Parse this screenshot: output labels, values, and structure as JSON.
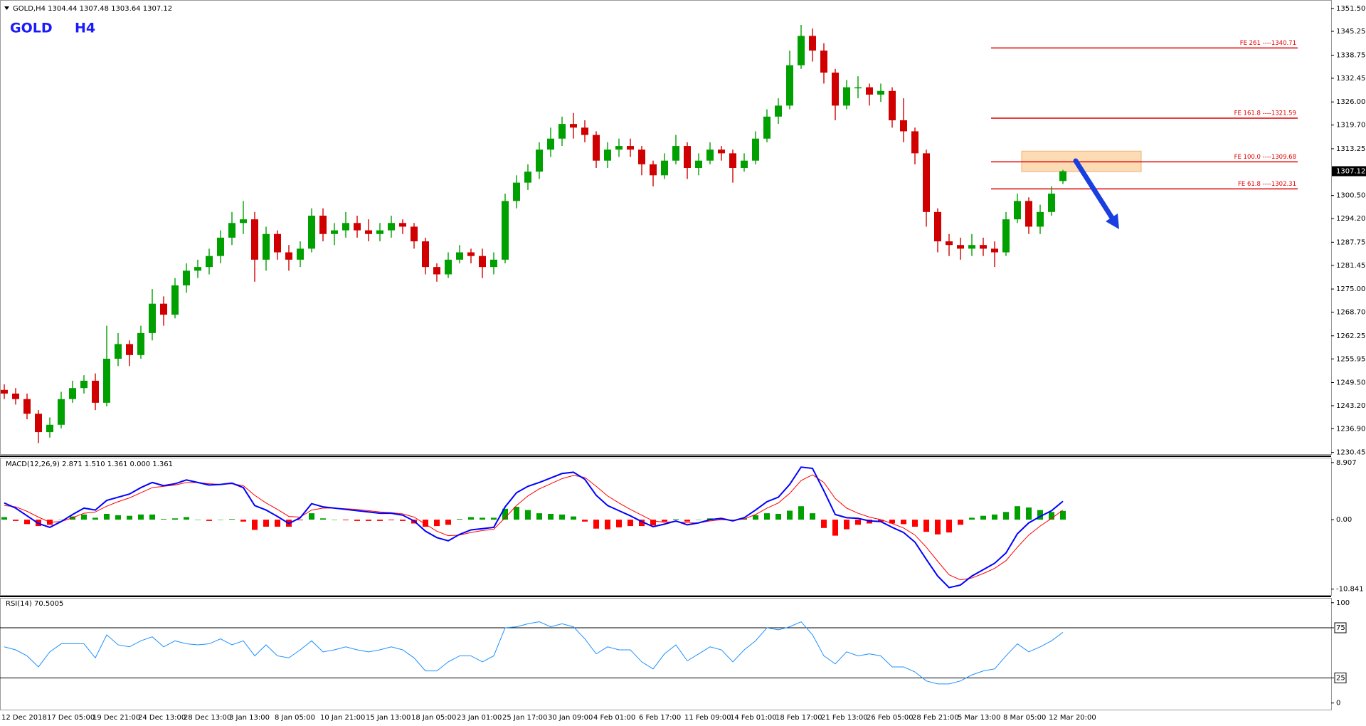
{
  "chart_data": [
    {
      "type": "candlestick",
      "title": "GOLD,H4  1304.44 1307.48 1303.64 1307.12",
      "symbol": "GOLD",
      "timeframe": "H4",
      "categories": [
        "12 Dec 2018",
        null,
        null,
        null,
        "17 Dec 05:00",
        null,
        null,
        null,
        "19 Dec 21:00",
        null,
        null,
        null,
        "24 Dec 13:00",
        null,
        null,
        null,
        "28 Dec 13:00",
        null,
        null,
        null,
        "3 Jan 13:00",
        null,
        null,
        null,
        "8 Jan 05:00",
        null,
        null,
        null,
        "10 Jan 21:00",
        null,
        null,
        null,
        "15 Jan 13:00",
        null,
        null,
        null,
        "18 Jan 05:00",
        null,
        null,
        null,
        "23 Jan 01:00",
        null,
        null,
        null,
        "25 Jan 17:00",
        null,
        null,
        null,
        "30 Jan 09:00",
        null,
        null,
        null,
        "4 Feb 01:00",
        null,
        null,
        null,
        "6 Feb 17:00",
        null,
        null,
        null,
        "11 Feb 09:00",
        null,
        null,
        null,
        "14 Feb 01:00",
        null,
        null,
        null,
        "18 Feb 17:00",
        null,
        null,
        null,
        "21 Feb 13:00",
        null,
        null,
        null,
        "26 Feb 05:00",
        null,
        null,
        null,
        "28 Feb 21:00",
        null,
        null,
        null,
        "5 Mar 13:00",
        null,
        null,
        null,
        "8 Mar 05:00",
        null,
        null,
        null,
        "12 Mar 20:00",
        null
      ],
      "ohlc": [
        [
          1247.5,
          1249,
          1245,
          1246.5
        ],
        [
          1246.5,
          1248,
          1243.5,
          1245
        ],
        [
          1245,
          1246.5,
          1239.5,
          1241
        ],
        [
          1241,
          1242,
          1233,
          1236
        ],
        [
          1236,
          1240,
          1234.5,
          1238
        ],
        [
          1238,
          1247,
          1237,
          1245
        ],
        [
          1245,
          1250,
          1244,
          1248
        ],
        [
          1248,
          1251.5,
          1246.5,
          1250
        ],
        [
          1250,
          1252,
          1242,
          1244
        ],
        [
          1244,
          1265,
          1243,
          1256
        ],
        [
          1256,
          1263,
          1254,
          1260
        ],
        [
          1260,
          1261,
          1254,
          1257
        ],
        [
          1257,
          1265,
          1256,
          1263
        ],
        [
          1263,
          1275,
          1261,
          1271
        ],
        [
          1271,
          1273,
          1265,
          1268
        ],
        [
          1268,
          1278,
          1267,
          1276
        ],
        [
          1276,
          1282,
          1274,
          1280
        ],
        [
          1280,
          1283,
          1278,
          1281
        ],
        [
          1281,
          1286,
          1279,
          1284
        ],
        [
          1284,
          1291,
          1282,
          1289
        ],
        [
          1289,
          1296,
          1287,
          1293
        ],
        [
          1293,
          1299,
          1290,
          1294
        ],
        [
          1294,
          1296,
          1277,
          1283
        ],
        [
          1283,
          1292,
          1280,
          1290
        ],
        [
          1290,
          1291,
          1283,
          1285
        ],
        [
          1285,
          1287,
          1280,
          1283
        ],
        [
          1283,
          1288,
          1281,
          1286
        ],
        [
          1286,
          1297,
          1285,
          1295
        ],
        [
          1295,
          1297,
          1288,
          1290
        ],
        [
          1290,
          1293,
          1287,
          1291
        ],
        [
          1291,
          1296,
          1289,
          1293
        ],
        [
          1293,
          1295,
          1289,
          1291
        ],
        [
          1291,
          1294,
          1288,
          1290
        ],
        [
          1290,
          1293,
          1288,
          1291
        ],
        [
          1291,
          1295,
          1289,
          1293
        ],
        [
          1293,
          1294,
          1290,
          1292
        ],
        [
          1292,
          1293,
          1286,
          1288
        ],
        [
          1288,
          1289,
          1279,
          1281
        ],
        [
          1281,
          1282,
          1277,
          1279
        ],
        [
          1279,
          1285,
          1278,
          1283
        ],
        [
          1283,
          1287,
          1282,
          1285
        ],
        [
          1285,
          1286,
          1282,
          1284
        ],
        [
          1284,
          1286,
          1278,
          1281
        ],
        [
          1281,
          1285,
          1279,
          1283
        ],
        [
          1283,
          1301,
          1282,
          1299
        ],
        [
          1299,
          1306,
          1297,
          1304
        ],
        [
          1304,
          1309,
          1302,
          1307
        ],
        [
          1307,
          1315,
          1305,
          1313
        ],
        [
          1313,
          1319,
          1311,
          1316
        ],
        [
          1316,
          1322,
          1314,
          1320
        ],
        [
          1320,
          1323,
          1316,
          1319
        ],
        [
          1319,
          1321,
          1315,
          1317
        ],
        [
          1317,
          1318,
          1308,
          1310
        ],
        [
          1310,
          1315,
          1308,
          1313
        ],
        [
          1313,
          1316,
          1311,
          1314
        ],
        [
          1314,
          1316,
          1311,
          1313
        ],
        [
          1313,
          1314,
          1306,
          1309
        ],
        [
          1309,
          1310,
          1303,
          1306
        ],
        [
          1306,
          1312,
          1305,
          1310
        ],
        [
          1310,
          1317,
          1309,
          1314
        ],
        [
          1314,
          1315,
          1305,
          1308
        ],
        [
          1308,
          1312,
          1306,
          1310
        ],
        [
          1310,
          1315,
          1309,
          1313
        ],
        [
          1313,
          1314,
          1310,
          1312
        ],
        [
          1312,
          1313,
          1304,
          1308
        ],
        [
          1308,
          1312,
          1307,
          1310
        ],
        [
          1310,
          1318,
          1309,
          1316
        ],
        [
          1316,
          1324,
          1315,
          1322
        ],
        [
          1322,
          1327,
          1320,
          1325
        ],
        [
          1325,
          1340,
          1324,
          1336
        ],
        [
          1336,
          1347,
          1335,
          1344
        ],
        [
          1344,
          1346,
          1337,
          1340
        ],
        [
          1340,
          1342,
          1331,
          1334
        ],
        [
          1334,
          1335,
          1321,
          1325
        ],
        [
          1325,
          1332,
          1324,
          1330
        ],
        [
          1330,
          1333,
          1327,
          1330
        ],
        [
          1330,
          1331,
          1325,
          1328
        ],
        [
          1328,
          1331,
          1326,
          1329
        ],
        [
          1329,
          1330,
          1319,
          1321
        ],
        [
          1321,
          1327,
          1315,
          1318
        ],
        [
          1318,
          1319,
          1309,
          1312
        ],
        [
          1312,
          1313,
          1292,
          1296
        ],
        [
          1296,
          1297,
          1285,
          1288
        ],
        [
          1288,
          1290,
          1284,
          1287
        ],
        [
          1287,
          1289,
          1283,
          1286
        ],
        [
          1286,
          1290,
          1284,
          1287
        ],
        [
          1287,
          1289,
          1284,
          1286
        ],
        [
          1286,
          1288,
          1281,
          1285
        ],
        [
          1285,
          1296,
          1284,
          1294
        ],
        [
          1294,
          1301,
          1293,
          1299
        ],
        [
          1299,
          1300,
          1290,
          1292
        ],
        [
          1292,
          1298,
          1290,
          1296
        ],
        [
          1296,
          1303,
          1295,
          1301
        ],
        [
          1304.44,
          1307.48,
          1303.64,
          1307.12
        ]
      ],
      "up_color": "#00a000",
      "down_color": "#d00000",
      "ylim": [
        1230.0,
        1353.4
      ],
      "yticks": [
        {
          "value": 1351.5,
          "label": "1351.50"
        },
        1345.25,
        1338.75,
        1332.45,
        {
          "value": 1326,
          "label": "1326.00"
        },
        {
          "value": 1319.7,
          "label": "1319.70"
        },
        1313.25,
        {
          "value": 1300.5,
          "label": "1300.50"
        },
        {
          "value": 1294.2,
          "label": "1294.20"
        },
        1287.75,
        1281.45,
        {
          "value": 1275,
          "label": "1275.00"
        },
        {
          "value": 1268.7,
          "label": "1268.70"
        },
        1262.25,
        1255.95,
        {
          "value": 1249.5,
          "label": "1249.50"
        },
        {
          "value": 1243.2,
          "label": "1243.20"
        },
        {
          "value": 1236.9,
          "label": "1236.90"
        },
        1230.45
      ],
      "levels": [
        {
          "label": "FE 261 ----1340.71",
          "value": 1340.71
        },
        {
          "label": "FE 161.8 ----1321.59",
          "value": 1321.59
        },
        {
          "label": "FE 100.0 ----1309.68",
          "value": 1309.68
        },
        {
          "label": "FE 61.8 ----1302.31",
          "value": 1302.31
        }
      ],
      "level_color": "#e00000",
      "zone": [
        1307.0,
        1312.6
      ],
      "zone_color": "#fcd5a8"
    },
    {
      "type": "macd",
      "title": "MACD(12,26,9) 2.871 1.510 1.361 0.000 1.361",
      "ylim": [
        -11.65,
        9.45
      ],
      "yticks": [
        8.907,
        {
          "value": 0,
          "label": "0.00"
        },
        -10.841
      ],
      "series": [
        {
          "kind": "histogram",
          "color": "#00a000",
          "negative_color": "#ff0000",
          "values": [
            0.4,
            -0.2,
            -0.7,
            -1.0,
            -0.8,
            0.0,
            0.5,
            0.8,
            0.3,
            0.9,
            0.7,
            0.6,
            0.8,
            0.8,
            0.1,
            0.2,
            0.4,
            0.0,
            -0.2,
            0.0,
            0.1,
            -0.3,
            -1.6,
            -1.1,
            -1.1,
            -1.1,
            -0.1,
            1.0,
            0.2,
            0.0,
            -0.1,
            -0.2,
            -0.2,
            -0.2,
            -0.1,
            -0.2,
            -0.6,
            -1.1,
            -1.0,
            -0.8,
            0.1,
            0.4,
            0.3,
            0.3,
            1.7,
            2.0,
            1.5,
            1.0,
            0.9,
            0.8,
            0.5,
            -0.3,
            -1.4,
            -1.5,
            -1.2,
            -1.0,
            -1.0,
            -0.9,
            -0.3,
            0.1,
            -0.3,
            0.0,
            0.2,
            0.2,
            -0.1,
            0.2,
            0.7,
            1.0,
            0.9,
            1.4,
            2.1,
            1.0,
            -1.3,
            -2.5,
            -1.5,
            -0.8,
            -0.6,
            -0.3,
            -0.6,
            -0.7,
            -1.1,
            -1.9,
            -2.3,
            -2.0,
            -0.8,
            0.3,
            0.6,
            0.8,
            1.2,
            2.1,
            1.9,
            1.5,
            1.2,
            1.361
          ]
        },
        {
          "kind": "line",
          "color": "#ff0000",
          "width": 1,
          "values": [
            2.2,
            2.0,
            1.3,
            0.4,
            -0.4,
            -0.3,
            0.3,
            1.0,
            1.2,
            2.1,
            2.8,
            3.4,
            4.2,
            5.0,
            5.2,
            5.4,
            5.8,
            5.8,
            5.6,
            5.5,
            5.6,
            5.3,
            3.8,
            2.6,
            1.6,
            0.5,
            0.4,
            1.5,
            1.8,
            1.8,
            1.7,
            1.6,
            1.4,
            1.2,
            1.1,
            0.9,
            0.4,
            -0.7,
            -1.8,
            -2.5,
            -2.4,
            -2.0,
            -1.7,
            -1.5,
            0.3,
            2.2,
            3.7,
            4.8,
            5.6,
            6.4,
            6.9,
            6.6,
            5.2,
            3.7,
            2.6,
            1.6,
            0.7,
            -0.2,
            -0.4,
            -0.3,
            -0.5,
            -0.5,
            -0.2,
            0.0,
            -0.1,
            0.1,
            0.8,
            1.8,
            2.6,
            4.1,
            6.1,
            7.0,
            5.8,
            3.3,
            1.8,
            1.0,
            0.4,
            0.0,
            -0.6,
            -1.3,
            -2.4,
            -4.3,
            -6.5,
            -8.6,
            -9.4,
            -9.1,
            -8.4,
            -7.6,
            -6.4,
            -4.3,
            -2.4,
            -1.0,
            0.2,
            1.51
          ]
        },
        {
          "kind": "line",
          "color": "#0000ff",
          "width": 2,
          "values": [
            2.6,
            1.8,
            0.6,
            -0.6,
            -1.2,
            -0.3,
            0.8,
            1.8,
            1.5,
            3.0,
            3.5,
            4.0,
            5.0,
            5.8,
            5.3,
            5.6,
            6.2,
            5.8,
            5.4,
            5.5,
            5.7,
            5.0,
            2.2,
            1.5,
            0.5,
            -0.6,
            0.3,
            2.5,
            2.0,
            1.8,
            1.6,
            1.4,
            1.2,
            1.0,
            1.0,
            0.7,
            -0.2,
            -1.8,
            -2.8,
            -3.3,
            -2.3,
            -1.6,
            -1.4,
            -1.2,
            2.0,
            4.2,
            5.2,
            5.8,
            6.5,
            7.2,
            7.4,
            6.3,
            3.8,
            2.2,
            1.4,
            0.6,
            -0.3,
            -1.1,
            -0.7,
            -0.2,
            -0.8,
            -0.5,
            0.0,
            0.2,
            -0.2,
            0.3,
            1.5,
            2.8,
            3.5,
            5.5,
            8.2,
            8.0,
            4.5,
            0.8,
            0.3,
            0.2,
            -0.2,
            -0.3,
            -1.2,
            -2.0,
            -3.5,
            -6.2,
            -8.8,
            -10.6,
            -10.2,
            -8.8,
            -7.8,
            -6.8,
            -5.2,
            -2.2,
            -0.5,
            0.5,
            1.4,
            2.871
          ]
        }
      ]
    },
    {
      "type": "rsi",
      "title": "RSI(14) 70.5005",
      "ylim": [
        -5.9,
        103.4
      ],
      "yticks": [
        100,
        75,
        25,
        0
      ],
      "levels": [
        75,
        25
      ],
      "color": "#1e90ff",
      "values": [
        56,
        53,
        47,
        36,
        51,
        59,
        59,
        59,
        45,
        68,
        58,
        56,
        62,
        66,
        56,
        62,
        59,
        58,
        59,
        64,
        58,
        62,
        47,
        58,
        47,
        45,
        53,
        62,
        51,
        53,
        56,
        53,
        51,
        53,
        56,
        53,
        45,
        32,
        32,
        41,
        47,
        47,
        41,
        47,
        75,
        76,
        79,
        81,
        76,
        79,
        76,
        64,
        49,
        56,
        53,
        53,
        41,
        34,
        49,
        58,
        42,
        49,
        56,
        53,
        41,
        53,
        62,
        75,
        73,
        76,
        81,
        68,
        47,
        39,
        51,
        47,
        49,
        47,
        36,
        36,
        31,
        22,
        19,
        19,
        22,
        28,
        32,
        34,
        47,
        59,
        51,
        56,
        62,
        70.5005
      ]
    }
  ]
}
